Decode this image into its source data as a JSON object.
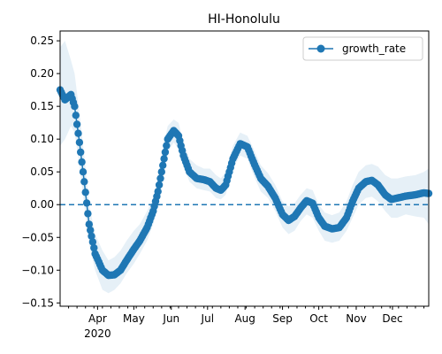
{
  "chart_data": {
    "type": "line",
    "title": "HI-Honolulu",
    "xlabel": "",
    "ylabel": "",
    "x_range": [
      "2020-03-01",
      "2020-12-31"
    ],
    "ylim": [
      -0.155,
      0.265
    ],
    "x_ticks": [
      {
        "date": "2020-04-01",
        "label": "Apr",
        "year_label": "2020"
      },
      {
        "date": "2020-05-01",
        "label": "May"
      },
      {
        "date": "2020-06-01",
        "label": "Jun"
      },
      {
        "date": "2020-07-01",
        "label": "Jul"
      },
      {
        "date": "2020-08-01",
        "label": "Aug"
      },
      {
        "date": "2020-09-01",
        "label": "Sep"
      },
      {
        "date": "2020-10-01",
        "label": "Oct"
      },
      {
        "date": "2020-11-01",
        "label": "Nov"
      },
      {
        "date": "2020-12-01",
        "label": "Dec"
      }
    ],
    "y_ticks": [
      -0.15,
      -0.1,
      -0.05,
      0.0,
      0.05,
      0.1,
      0.15,
      0.2,
      0.25
    ],
    "y_tick_labels": [
      "−0.15",
      "−0.10",
      "−0.05",
      "0.00",
      "0.05",
      "0.10",
      "0.15",
      "0.20",
      "0.25"
    ],
    "reference_line": {
      "y": 0.0,
      "style": "dashed"
    },
    "grid": false,
    "legend": {
      "position": "top-right",
      "entries": [
        "growth_rate"
      ]
    },
    "series": [
      {
        "name": "growth_rate",
        "color": "#1f77b4",
        "marker": "circle",
        "band_color": "#1f77b4",
        "keyframes": [
          {
            "x": "2020-03-01",
            "y": 0.175,
            "lo": 0.09,
            "hi": 0.24
          },
          {
            "x": "2020-03-05",
            "y": 0.16,
            "lo": 0.1,
            "hi": 0.25
          },
          {
            "x": "2020-03-10",
            "y": 0.168,
            "lo": 0.12,
            "hi": 0.22
          },
          {
            "x": "2020-03-13",
            "y": 0.15,
            "lo": 0.11,
            "hi": 0.2
          },
          {
            "x": "2020-03-17",
            "y": 0.095,
            "lo": 0.06,
            "hi": 0.14
          },
          {
            "x": "2020-03-21",
            "y": 0.035,
            "lo": 0.0,
            "hi": 0.075
          },
          {
            "x": "2020-03-25",
            "y": -0.03,
            "lo": -0.06,
            "hi": 0.0
          },
          {
            "x": "2020-03-30",
            "y": -0.075,
            "lo": -0.1,
            "hi": -0.045
          },
          {
            "x": "2020-04-05",
            "y": -0.1,
            "lo": -0.13,
            "hi": -0.07
          },
          {
            "x": "2020-04-10",
            "y": -0.108,
            "lo": -0.135,
            "hi": -0.085
          },
          {
            "x": "2020-04-15",
            "y": -0.107,
            "lo": -0.13,
            "hi": -0.08
          },
          {
            "x": "2020-04-20",
            "y": -0.1,
            "lo": -0.12,
            "hi": -0.07
          },
          {
            "x": "2020-04-25",
            "y": -0.085,
            "lo": -0.105,
            "hi": -0.055
          },
          {
            "x": "2020-05-01",
            "y": -0.068,
            "lo": -0.09,
            "hi": -0.04
          },
          {
            "x": "2020-05-06",
            "y": -0.055,
            "lo": -0.075,
            "hi": -0.03
          },
          {
            "x": "2020-05-12",
            "y": -0.035,
            "lo": -0.055,
            "hi": -0.01
          },
          {
            "x": "2020-05-17",
            "y": -0.01,
            "lo": -0.03,
            "hi": 0.01
          },
          {
            "x": "2020-05-21",
            "y": 0.02,
            "lo": 0.0,
            "hi": 0.04
          },
          {
            "x": "2020-05-25",
            "y": 0.06,
            "lo": 0.04,
            "hi": 0.085
          },
          {
            "x": "2020-05-29",
            "y": 0.1,
            "lo": 0.08,
            "hi": 0.12
          },
          {
            "x": "2020-06-03",
            "y": 0.113,
            "lo": 0.095,
            "hi": 0.13
          },
          {
            "x": "2020-06-07",
            "y": 0.105,
            "lo": 0.085,
            "hi": 0.125
          },
          {
            "x": "2020-06-11",
            "y": 0.075,
            "lo": 0.06,
            "hi": 0.095
          },
          {
            "x": "2020-06-16",
            "y": 0.05,
            "lo": 0.035,
            "hi": 0.07
          },
          {
            "x": "2020-06-22",
            "y": 0.04,
            "lo": 0.025,
            "hi": 0.06
          },
          {
            "x": "2020-06-28",
            "y": 0.038,
            "lo": 0.022,
            "hi": 0.055
          },
          {
            "x": "2020-07-03",
            "y": 0.035,
            "lo": 0.02,
            "hi": 0.055
          },
          {
            "x": "2020-07-08",
            "y": 0.025,
            "lo": 0.01,
            "hi": 0.045
          },
          {
            "x": "2020-07-12",
            "y": 0.022,
            "lo": 0.008,
            "hi": 0.04
          },
          {
            "x": "2020-07-16",
            "y": 0.03,
            "lo": 0.015,
            "hi": 0.05
          },
          {
            "x": "2020-07-22",
            "y": 0.07,
            "lo": 0.055,
            "hi": 0.09
          },
          {
            "x": "2020-07-28",
            "y": 0.093,
            "lo": 0.075,
            "hi": 0.11
          },
          {
            "x": "2020-08-03",
            "y": 0.088,
            "lo": 0.07,
            "hi": 0.105
          },
          {
            "x": "2020-08-08",
            "y": 0.065,
            "lo": 0.045,
            "hi": 0.085
          },
          {
            "x": "2020-08-14",
            "y": 0.04,
            "lo": 0.02,
            "hi": 0.06
          },
          {
            "x": "2020-08-20",
            "y": 0.028,
            "lo": 0.01,
            "hi": 0.048
          },
          {
            "x": "2020-08-26",
            "y": 0.01,
            "lo": -0.01,
            "hi": 0.03
          },
          {
            "x": "2020-09-01",
            "y": -0.015,
            "lo": -0.035,
            "hi": 0.005
          },
          {
            "x": "2020-09-06",
            "y": -0.024,
            "lo": -0.045,
            "hi": -0.003
          },
          {
            "x": "2020-09-11",
            "y": -0.018,
            "lo": -0.04,
            "hi": 0.002
          },
          {
            "x": "2020-09-16",
            "y": -0.005,
            "lo": -0.025,
            "hi": 0.015
          },
          {
            "x": "2020-09-21",
            "y": 0.006,
            "lo": -0.015,
            "hi": 0.025
          },
          {
            "x": "2020-09-26",
            "y": 0.002,
            "lo": -0.02,
            "hi": 0.022
          },
          {
            "x": "2020-10-01",
            "y": -0.02,
            "lo": -0.04,
            "hi": 0.0
          },
          {
            "x": "2020-10-06",
            "y": -0.033,
            "lo": -0.055,
            "hi": -0.012
          },
          {
            "x": "2020-10-12",
            "y": -0.037,
            "lo": -0.058,
            "hi": -0.016
          },
          {
            "x": "2020-10-18",
            "y": -0.035,
            "lo": -0.055,
            "hi": -0.012
          },
          {
            "x": "2020-10-24",
            "y": -0.02,
            "lo": -0.04,
            "hi": 0.005
          },
          {
            "x": "2020-10-29",
            "y": 0.005,
            "lo": -0.02,
            "hi": 0.03
          },
          {
            "x": "2020-11-03",
            "y": 0.025,
            "lo": 0.0,
            "hi": 0.05
          },
          {
            "x": "2020-11-09",
            "y": 0.035,
            "lo": 0.01,
            "hi": 0.06
          },
          {
            "x": "2020-11-14",
            "y": 0.037,
            "lo": 0.012,
            "hi": 0.062
          },
          {
            "x": "2020-11-19",
            "y": 0.03,
            "lo": 0.005,
            "hi": 0.058
          },
          {
            "x": "2020-11-25",
            "y": 0.015,
            "lo": -0.01,
            "hi": 0.045
          },
          {
            "x": "2020-11-30",
            "y": 0.008,
            "lo": -0.02,
            "hi": 0.04
          },
          {
            "x": "2020-12-05",
            "y": 0.01,
            "lo": -0.02,
            "hi": 0.04
          },
          {
            "x": "2020-12-12",
            "y": 0.013,
            "lo": -0.015,
            "hi": 0.043
          },
          {
            "x": "2020-12-20",
            "y": 0.015,
            "lo": -0.018,
            "hi": 0.045
          },
          {
            "x": "2020-12-27",
            "y": 0.018,
            "lo": -0.02,
            "hi": 0.05
          },
          {
            "x": "2020-12-31",
            "y": 0.017,
            "lo": -0.03,
            "hi": 0.055
          }
        ]
      }
    ]
  }
}
